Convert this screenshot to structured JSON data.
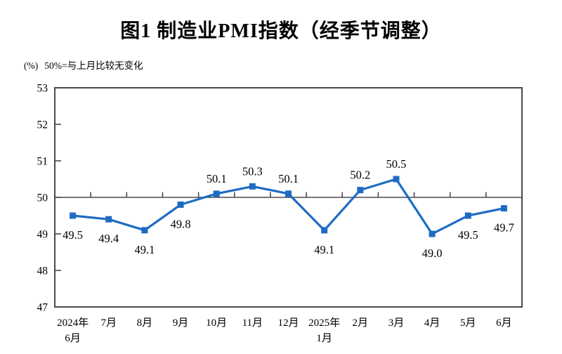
{
  "chart_data": {
    "type": "line",
    "title": "图1 制造业PMI指数（经季节调整）",
    "unit": "(%)",
    "subtitle": "50%=与上月比较无变化",
    "categories": [
      "2024年\n6月",
      "7月",
      "8月",
      "9月",
      "10月",
      "11月",
      "12月",
      "2025年\n1月",
      "2月",
      "3月",
      "4月",
      "5月",
      "6月"
    ],
    "values": [
      49.5,
      49.4,
      49.1,
      49.8,
      50.1,
      50.3,
      50.1,
      49.1,
      50.2,
      50.5,
      49.0,
      49.5,
      49.7
    ],
    "value_label_decimals": 1,
    "xlabel": "",
    "ylabel": "",
    "ylim": [
      47,
      53
    ],
    "ytick_step": 1,
    "reference_value": 50,
    "grid": false,
    "legend": null,
    "line_color": "#1e6bc4",
    "marker": "square",
    "axis_color": "#4a4a4a",
    "text_color": "#000000"
  }
}
